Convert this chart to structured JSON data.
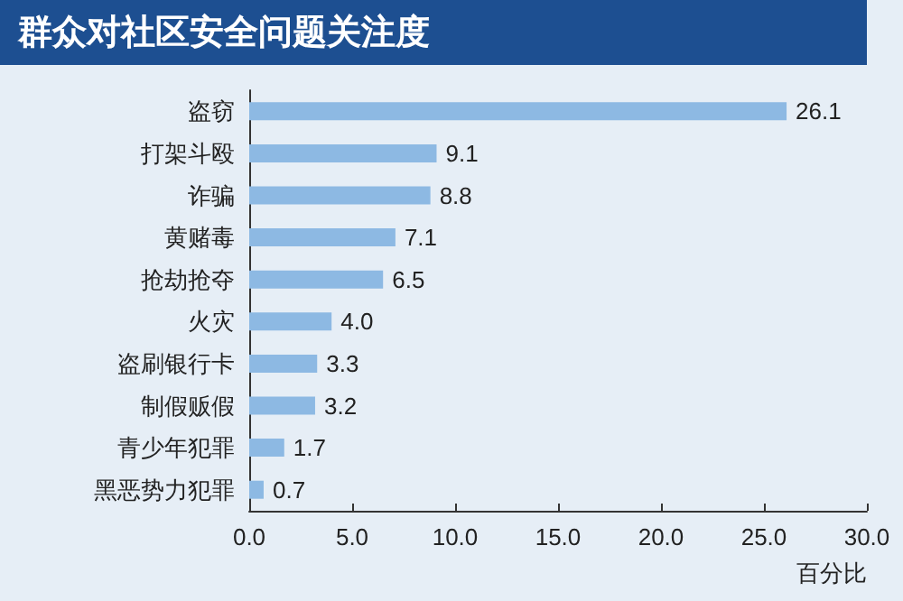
{
  "chart_data": {
    "type": "bar",
    "orientation": "horizontal",
    "title": "群众对社区安全问题关注度",
    "xlabel": "百分比",
    "categories": [
      "盗窃",
      "打架斗殴",
      "诈骗",
      "黄赌毒",
      "抢劫抢夺",
      "火灾",
      "盗刷银行卡",
      "制假贩假",
      "青少年犯罪",
      "黑恶势力犯罪"
    ],
    "values": [
      26.1,
      9.1,
      8.8,
      7.1,
      6.5,
      4.0,
      3.3,
      3.2,
      1.7,
      0.7
    ],
    "value_labels": [
      "26.1",
      "9.1",
      "8.8",
      "7.1",
      "6.5",
      "4.0",
      "3.3",
      "3.2",
      "1.7",
      "0.7"
    ],
    "color": "#8db9e3",
    "xlim": [
      0,
      30
    ],
    "xticks": [
      {
        "value": 0,
        "label": "0.0"
      },
      {
        "value": 5,
        "label": "5.0"
      },
      {
        "value": 10,
        "label": "10.0"
      },
      {
        "value": 15,
        "label": "15.0"
      },
      {
        "value": 20,
        "label": "20.0"
      },
      {
        "value": 25,
        "label": "25.0"
      },
      {
        "value": 30,
        "label": "30.0"
      }
    ],
    "grid": false
  }
}
